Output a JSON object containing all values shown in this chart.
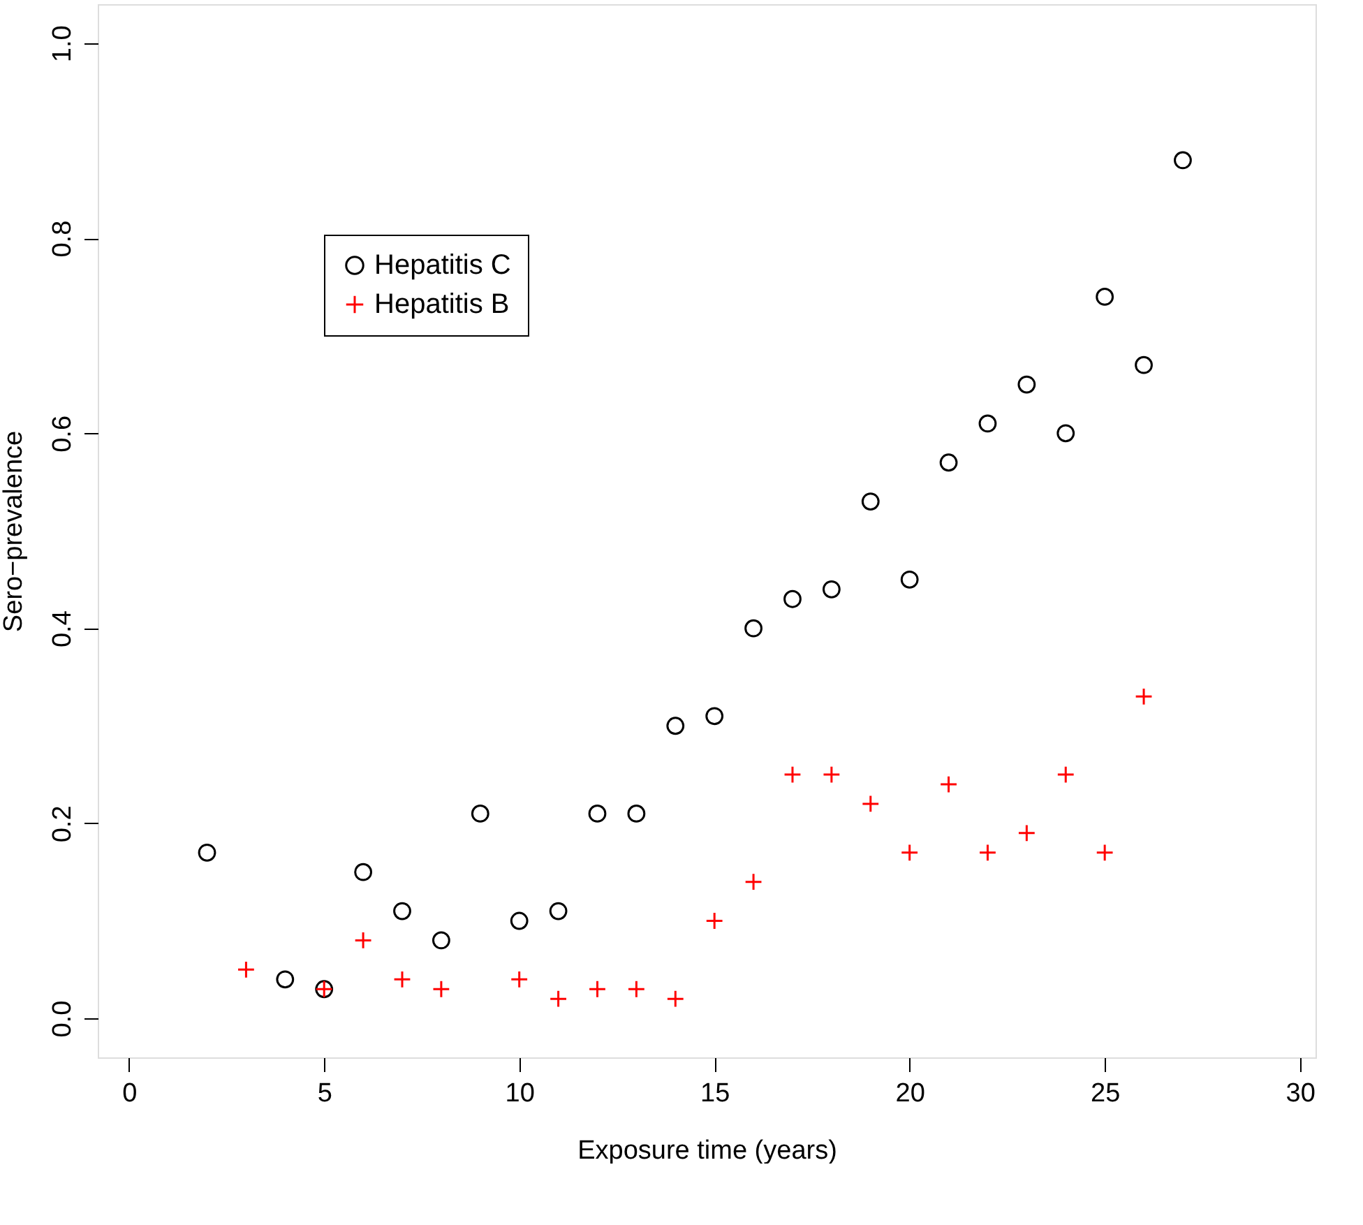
{
  "chart_data": {
    "type": "scatter",
    "xlabel": "Exposure time (years)",
    "ylabel": "Sero−prevalence",
    "xlim": [
      -0.8,
      30.4
    ],
    "ylim": [
      -0.04,
      1.04
    ],
    "xticks": [
      0,
      5,
      10,
      15,
      20,
      25,
      30
    ],
    "yticks": [
      {
        "value": 0,
        "label": "0.0"
      },
      {
        "value": 0.2,
        "label": "0.2"
      },
      {
        "value": 0.4,
        "label": "0.4"
      },
      {
        "value": 0.6,
        "label": "0.6"
      },
      {
        "value": 0.8,
        "label": "0.8"
      },
      {
        "value": 1,
        "label": "1.0"
      }
    ],
    "grid": false,
    "legend": "top left",
    "series": [
      {
        "name": "Hepatitis C",
        "color": "#000000",
        "marker": "circle",
        "x": [
          2,
          4,
          5,
          6,
          7,
          8,
          9,
          10,
          11,
          12,
          13,
          14,
          15,
          16,
          17,
          18,
          19,
          20,
          21,
          22,
          23,
          24,
          25,
          26,
          27
        ],
        "values": [
          0.17,
          0.04,
          0.03,
          0.15,
          0.11,
          0.08,
          0.21,
          0.1,
          0.11,
          0.21,
          0.21,
          0.3,
          0.31,
          0.4,
          0.43,
          0.44,
          0.53,
          0.45,
          0.57,
          0.61,
          0.65,
          0.6,
          0.74,
          0.67,
          0.88
        ]
      },
      {
        "name": "Hepatitis B",
        "color": "#ff0000",
        "marker": "cross",
        "x": [
          3,
          5,
          6,
          7,
          8,
          10,
          11,
          12,
          13,
          14,
          15,
          16,
          17,
          18,
          19,
          20,
          21,
          22,
          23,
          24,
          25,
          26
        ],
        "values": [
          0.05,
          0.03,
          0.08,
          0.04,
          0.03,
          0.04,
          0.02,
          0.03,
          0.03,
          0.02,
          0.1,
          0.14,
          0.25,
          0.25,
          0.22,
          0.17,
          0.24,
          0.17,
          0.19,
          0.25,
          0.17,
          0.33
        ]
      }
    ]
  }
}
